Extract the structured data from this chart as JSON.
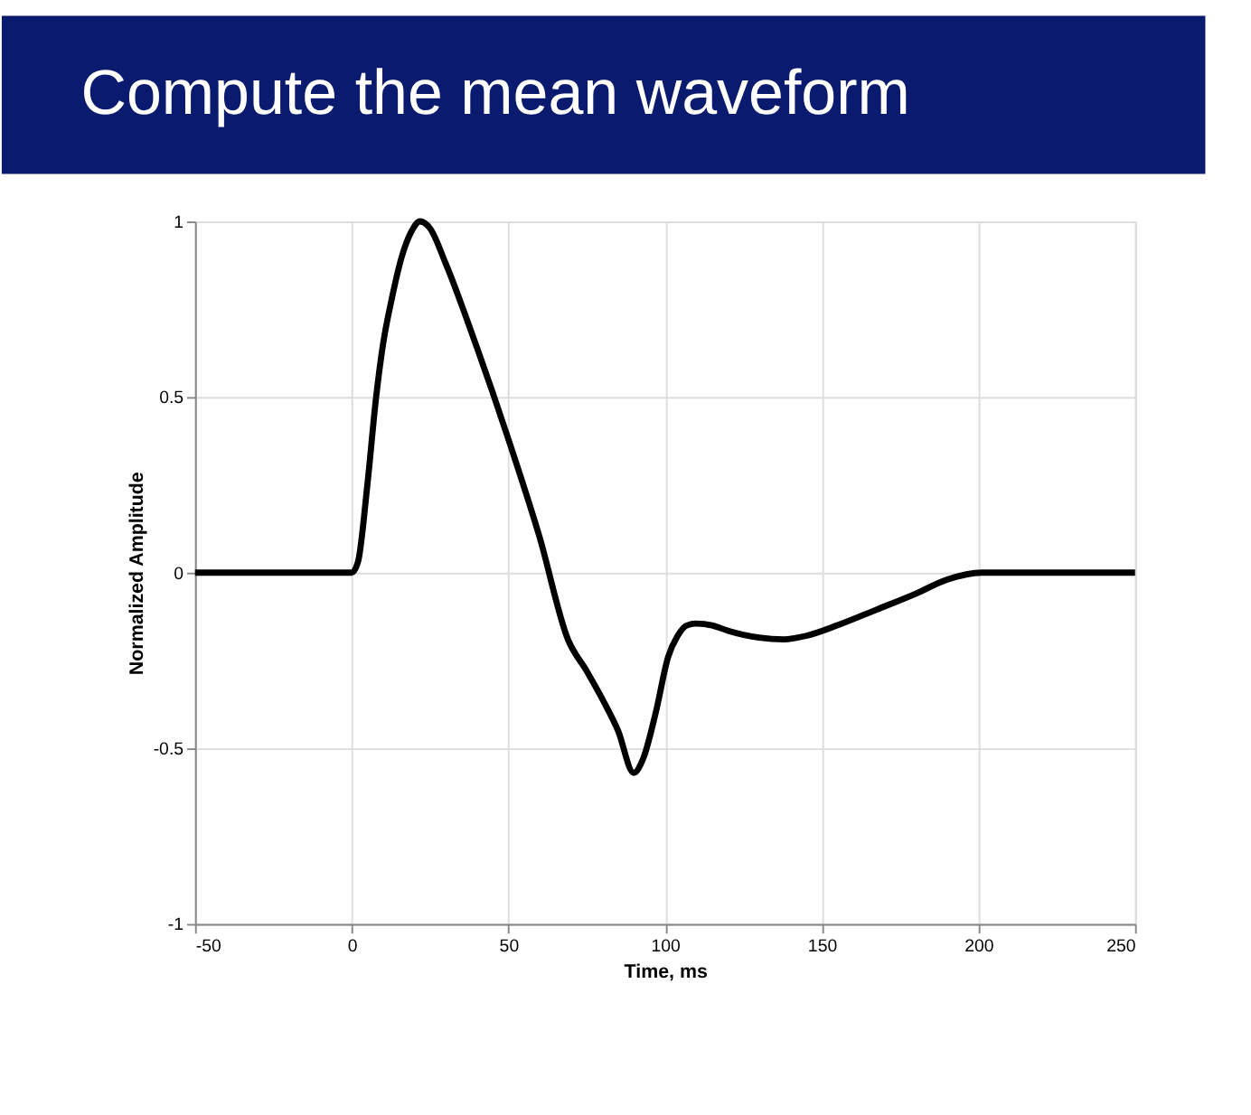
{
  "chart_data": {
    "type": "line",
    "title": "Compute the mean waveform",
    "xlabel": "Time, ms",
    "ylabel": "Normalized Amplitude",
    "x": [
      -50,
      -20,
      0,
      2,
      5,
      7.8,
      10,
      12.8,
      16,
      19,
      21.8,
      25,
      30,
      40,
      50,
      60,
      69,
      75,
      80,
      85,
      90,
      93,
      97,
      101,
      104,
      107,
      110,
      115,
      120,
      130,
      138,
      145,
      155,
      167.6,
      180,
      190,
      201,
      220,
      250
    ],
    "series": [
      {
        "color": "#000000",
        "values": [
          0,
          0,
          0,
          0.03,
          0.25,
          0.5,
          0.65,
          0.78,
          0.9,
          0.97,
          1,
          0.98,
          0.88,
          0.64,
          0.38,
          0.1,
          -0.19,
          -0.28,
          -0.36,
          -0.45,
          -0.57,
          -0.53,
          -0.4,
          -0.24,
          -0.18,
          -0.15,
          -0.145,
          -0.15,
          -0.165,
          -0.185,
          -0.19,
          -0.18,
          -0.15,
          -0.105,
          -0.06,
          -0.02,
          0,
          0,
          0
        ]
      }
    ],
    "xlim": [
      -50,
      250
    ],
    "xticks": [
      -50,
      0,
      50,
      100,
      150,
      200,
      250
    ],
    "ylim": [
      -1,
      1
    ],
    "yticks": [
      -1,
      -0.5,
      0,
      0.5,
      1
    ],
    "grid": true,
    "line_style": "solid",
    "marker": "none"
  }
}
